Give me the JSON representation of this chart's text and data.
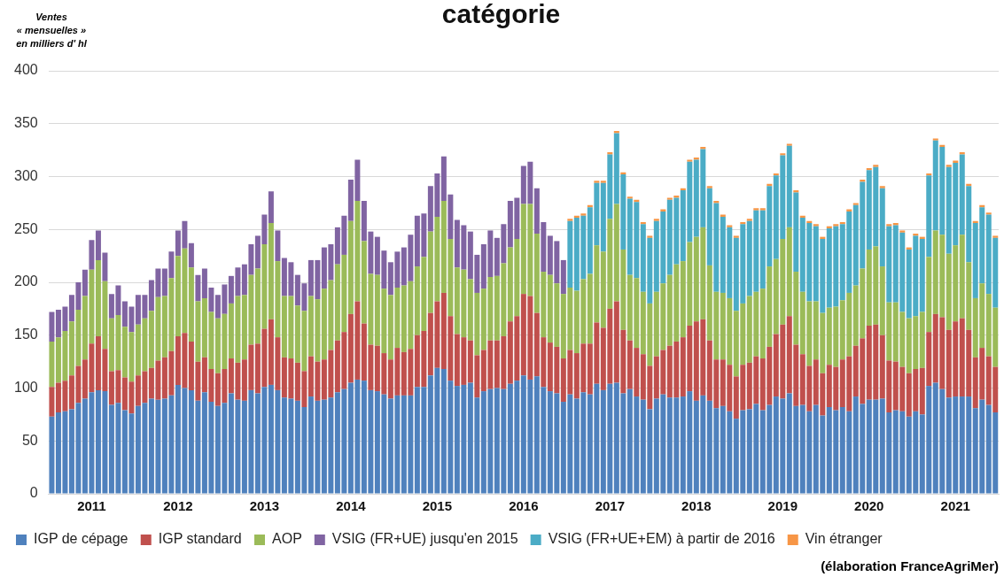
{
  "chart_data": {
    "type": "bar",
    "title": "catégorie",
    "ylabel": "Ventes\n« mensuelles »\nen milliers d' hl",
    "stacked": true,
    "grid": "y",
    "legend": "bottom",
    "ylim": [
      0,
      400
    ],
    "yticks": [
      0,
      50,
      100,
      150,
      200,
      250,
      300,
      350,
      400
    ],
    "annotations": [
      "(élaboration FranceAgriMer)"
    ],
    "categories": [
      null,
      null,
      null,
      null,
      null,
      null,
      "2011",
      null,
      null,
      null,
      null,
      null,
      null,
      null,
      null,
      null,
      null,
      null,
      null,
      "2012",
      null,
      null,
      null,
      null,
      null,
      null,
      null,
      null,
      null,
      null,
      null,
      null,
      "2013",
      null,
      null,
      null,
      null,
      null,
      null,
      null,
      null,
      null,
      null,
      null,
      null,
      "2014",
      null,
      null,
      null,
      null,
      null,
      null,
      null,
      null,
      null,
      null,
      null,
      null,
      "2015",
      null,
      null,
      null,
      null,
      null,
      null,
      null,
      null,
      null,
      null,
      null,
      null,
      "2016",
      null,
      null,
      null,
      null,
      null,
      null,
      null,
      null,
      null,
      null,
      null,
      null,
      "2017",
      null,
      null,
      null,
      null,
      null,
      null,
      null,
      null,
      null,
      null,
      null,
      null,
      "2018",
      null,
      null,
      null,
      null,
      null,
      null,
      null,
      null,
      null,
      null,
      null,
      null,
      "2019",
      null,
      null,
      null,
      null,
      null,
      null,
      null,
      null,
      null,
      null,
      null,
      null,
      "2020",
      null,
      null,
      null,
      null,
      null,
      null,
      null,
      null,
      null,
      null,
      null,
      null,
      "2021",
      null,
      null,
      null,
      null,
      null,
      null
    ],
    "series": [
      {
        "name": "IGP de cépage",
        "color": "#4f81bd",
        "values": [
          73,
          77,
          78,
          80,
          86,
          90,
          96,
          98,
          97,
          84,
          86,
          79,
          76,
          83,
          86,
          90,
          89,
          90,
          93,
          103,
          100,
          98,
          88,
          96,
          87,
          83,
          86,
          95,
          89,
          88,
          98,
          95,
          101,
          103,
          98,
          91,
          90,
          88,
          82,
          92,
          88,
          89,
          91,
          96,
          99,
          105,
          108,
          107,
          98,
          97,
          94,
          90,
          93,
          93,
          93,
          101,
          101,
          112,
          119,
          118,
          107,
          102,
          103,
          105,
          91,
          97,
          99,
          100,
          99,
          104,
          107,
          112,
          108,
          111,
          101,
          97,
          95,
          87,
          94,
          90,
          96,
          94,
          104,
          98,
          104,
          105,
          95,
          99,
          92,
          89,
          80,
          90,
          94,
          91,
          91,
          92,
          97,
          88,
          93,
          88,
          81,
          83,
          78,
          71,
          79,
          80,
          85,
          79,
          84,
          92,
          90,
          95,
          83,
          84,
          78,
          84,
          74,
          82,
          79,
          82,
          78,
          92,
          85,
          89,
          89,
          90,
          77,
          79,
          78,
          73,
          78,
          75,
          102,
          105,
          99,
          91,
          92,
          92,
          92,
          81,
          89,
          84,
          77
        ]
      },
      {
        "name": "IGP standard",
        "color": "#c0504d",
        "values": [
          28,
          28,
          29,
          32,
          35,
          37,
          46,
          51,
          40,
          32,
          31,
          31,
          30,
          29,
          30,
          29,
          37,
          39,
          42,
          46,
          52,
          46,
          37,
          33,
          31,
          31,
          32,
          33,
          35,
          39,
          43,
          47,
          55,
          62,
          50,
          38,
          38,
          36,
          34,
          38,
          37,
          38,
          45,
          49,
          54,
          65,
          74,
          54,
          43,
          43,
          39,
          37,
          45,
          41,
          44,
          49,
          53,
          59,
          63,
          72,
          61,
          49,
          45,
          40,
          40,
          39,
          46,
          45,
          50,
          59,
          61,
          77,
          79,
          60,
          47,
          46,
          44,
          41,
          42,
          43,
          46,
          48,
          58,
          59,
          71,
          77,
          60,
          46,
          46,
          43,
          41,
          40,
          42,
          49,
          53,
          56,
          62,
          75,
          72,
          57,
          46,
          44,
          44,
          40,
          43,
          44,
          45,
          49,
          55,
          59,
          70,
          73,
          58,
          48,
          43,
          43,
          40,
          40,
          41,
          45,
          52,
          48,
          62,
          70,
          71,
          60,
          49,
          46,
          42,
          41,
          40,
          44,
          51,
          65,
          68,
          64,
          71,
          74,
          63,
          48,
          49,
          46,
          43
        ]
      },
      {
        "name": "AOP",
        "color": "#9bbb59",
        "values": [
          43,
          43,
          47,
          51,
          53,
          60,
          70,
          72,
          64,
          50,
          52,
          48,
          47,
          48,
          50,
          54,
          60,
          58,
          69,
          76,
          80,
          70,
          57,
          56,
          54,
          52,
          52,
          52,
          63,
          61,
          66,
          71,
          80,
          91,
          72,
          58,
          59,
          54,
          57,
          57,
          59,
          67,
          66,
          72,
          73,
          88,
          95,
          78,
          67,
          67,
          61,
          61,
          57,
          63,
          64,
          65,
          70,
          77,
          80,
          87,
          73,
          63,
          64,
          58,
          59,
          58,
          60,
          61,
          69,
          70,
          73,
          85,
          87,
          75,
          62,
          64,
          60,
          61,
          59,
          59,
          61,
          66,
          73,
          72,
          85,
          92,
          76,
          62,
          66,
          59,
          59,
          61,
          63,
          67,
          73,
          72,
          79,
          80,
          87,
          71,
          64,
          63,
          63,
          62,
          58,
          63,
          61,
          66,
          76,
          71,
          81,
          84,
          69,
          59,
          61,
          55,
          57,
          54,
          57,
          56,
          60,
          57,
          66,
          72,
          74,
          65,
          55,
          56,
          52,
          52,
          50,
          53,
          71,
          79,
          78,
          72,
          72,
          79,
          64,
          56,
          61,
          59,
          56
        ]
      },
      {
        "name": "VSIG (FR+UE) jusqu'en 2015",
        "color": "#8064a2",
        "values": [
          28,
          26,
          23,
          25,
          26,
          25,
          28,
          28,
          27,
          23,
          28,
          24,
          24,
          28,
          22,
          29,
          27,
          26,
          25,
          24,
          26,
          23,
          25,
          28,
          23,
          22,
          28,
          26,
          27,
          29,
          29,
          31,
          28,
          30,
          29,
          36,
          32,
          29,
          26,
          34,
          37,
          39,
          34,
          35,
          37,
          39,
          39,
          38,
          40,
          36,
          36,
          31,
          34,
          36,
          44,
          48,
          41,
          43,
          41,
          42,
          42,
          45,
          42,
          45,
          36,
          42,
          44,
          36,
          37,
          44,
          39,
          36,
          40,
          43,
          47,
          37,
          40,
          32,
          null,
          null,
          null,
          null,
          null,
          null,
          null,
          null,
          null,
          null,
          null,
          null,
          null,
          null,
          null,
          null,
          null,
          null,
          null,
          null,
          null,
          null,
          null,
          null,
          null,
          null,
          null,
          null,
          null,
          null,
          null,
          null,
          null,
          null,
          null,
          null,
          null,
          null,
          null,
          null,
          null,
          null,
          null,
          null,
          null,
          null,
          null,
          null,
          null,
          null,
          null,
          null,
          null,
          null,
          null,
          null,
          null,
          null,
          null,
          null,
          null,
          null,
          null,
          null,
          null
        ]
      },
      {
        "name": "VSIG (FR+UE+EM) à partir de 2016",
        "color": "#4bacc6",
        "values": [
          null,
          null,
          null,
          null,
          null,
          null,
          null,
          null,
          null,
          null,
          null,
          null,
          null,
          null,
          null,
          null,
          null,
          null,
          null,
          null,
          null,
          null,
          null,
          null,
          null,
          null,
          null,
          null,
          null,
          null,
          null,
          null,
          null,
          null,
          null,
          null,
          null,
          null,
          null,
          null,
          null,
          null,
          null,
          null,
          null,
          null,
          null,
          null,
          null,
          null,
          null,
          null,
          null,
          null,
          null,
          null,
          null,
          null,
          null,
          null,
          null,
          null,
          null,
          null,
          null,
          null,
          null,
          null,
          null,
          null,
          null,
          null,
          null,
          null,
          null,
          null,
          null,
          null,
          63,
          69,
          60,
          63,
          59,
          65,
          61,
          67,
          71,
          72,
          72,
          64,
          62,
          67,
          68,
          71,
          63,
          67,
          76,
          73,
          74,
          73,
          84,
          72,
          67,
          69,
          75,
          71,
          77,
          74,
          76,
          79,
          79,
          77,
          75,
          70,
          74,
          71,
          70,
          75,
          76,
          72,
          77,
          76,
          82,
          75,
          75,
          74,
          72,
          73,
          75,
          65,
          76,
          69,
          77,
          85,
          83,
          82,
          78,
          76,
          72,
          71,
          72,
          75,
          66
        ]
      },
      {
        "name": "Vin étranger",
        "color": "#f79646",
        "values": [
          null,
          null,
          null,
          null,
          null,
          null,
          null,
          null,
          null,
          null,
          null,
          null,
          null,
          null,
          null,
          null,
          null,
          null,
          null,
          null,
          null,
          null,
          null,
          null,
          null,
          null,
          null,
          null,
          null,
          null,
          null,
          null,
          null,
          null,
          null,
          null,
          null,
          null,
          null,
          null,
          null,
          null,
          null,
          null,
          null,
          null,
          null,
          null,
          null,
          null,
          null,
          null,
          null,
          null,
          null,
          null,
          null,
          null,
          null,
          null,
          null,
          null,
          null,
          null,
          null,
          null,
          null,
          null,
          null,
          null,
          null,
          null,
          null,
          null,
          null,
          null,
          null,
          null,
          2,
          2,
          2,
          2,
          2,
          2,
          2,
          2,
          2,
          2,
          2,
          2,
          2,
          2,
          2,
          2,
          2,
          2,
          2,
          2,
          2,
          2,
          2,
          2,
          2,
          2,
          2,
          2,
          2,
          2,
          2,
          2,
          2,
          2,
          2,
          2,
          2,
          2,
          2,
          2,
          2,
          2,
          2,
          2,
          2,
          2,
          2,
          2,
          2,
          2,
          2,
          2,
          2,
          2,
          2,
          2,
          2,
          2,
          2,
          2,
          2,
          2,
          2,
          2,
          2
        ]
      }
    ]
  }
}
